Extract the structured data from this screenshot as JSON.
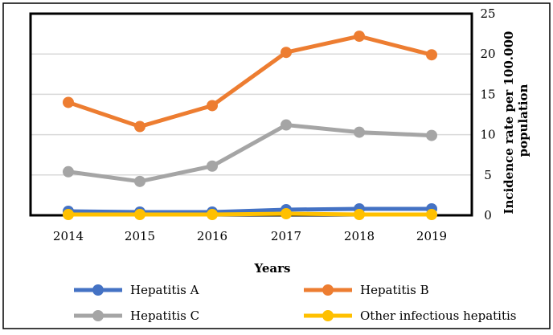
{
  "chart_data": {
    "type": "line",
    "title": "",
    "xlabel": "Years",
    "ylabel": "Incidence rate per 100.000 population",
    "categories": [
      "2014",
      "2015",
      "2016",
      "2017",
      "2018",
      "2019"
    ],
    "ylim": [
      0,
      25
    ],
    "yticks": [
      "0",
      "5",
      "10",
      "15",
      "20",
      "25"
    ],
    "y_axis_side": "right",
    "grid": true,
    "legend_position": "bottom",
    "series": [
      {
        "name": "Hepatitis A",
        "color": "#4472C4",
        "values": [
          0.5,
          0.4,
          0.4,
          0.7,
          0.8,
          0.8
        ]
      },
      {
        "name": "Hepatitis B",
        "color": "#ED7D31",
        "values": [
          14.0,
          11.0,
          13.6,
          20.2,
          22.2,
          19.9
        ]
      },
      {
        "name": "Hepatitis C",
        "color": "#A5A5A5",
        "values": [
          5.4,
          4.2,
          6.1,
          11.2,
          10.3,
          9.9
        ]
      },
      {
        "name": "Other infectious hepatitis",
        "color": "#FFC000",
        "values": [
          0.1,
          0.1,
          0.1,
          0.2,
          0.1,
          0.1
        ]
      }
    ]
  }
}
